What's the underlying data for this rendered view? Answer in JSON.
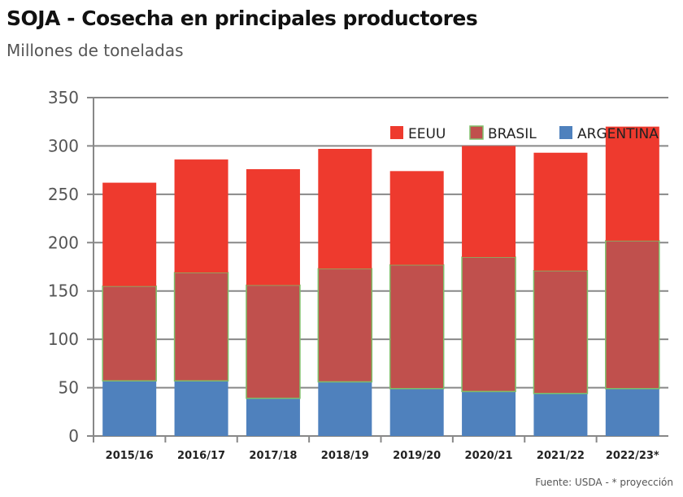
{
  "chart_data": {
    "type": "bar",
    "stacked": true,
    "title": "SOJA - Cosecha en principales productores",
    "subtitle": "Millones de toneladas",
    "source": "Fuente: USDA - * proyección",
    "categories": [
      "2015/16",
      "2016/17",
      "2017/18",
      "2018/19",
      "2019/20",
      "2020/21",
      "2021/22",
      "2022/23*"
    ],
    "series": [
      {
        "name": "ARGENTINA",
        "color": "#4f81bd",
        "values": [
          57,
          57,
          39,
          56,
          49,
          46,
          44,
          49
        ]
      },
      {
        "name": "BRASIL",
        "color": "#c0504d",
        "values": [
          98,
          112,
          117,
          117,
          128,
          139,
          127,
          153
        ]
      },
      {
        "name": "EEUU",
        "color": "#ee3a2e",
        "values": [
          107,
          117,
          120,
          124,
          97,
          115,
          122,
          118
        ]
      }
    ],
    "legend_order": [
      "EEUU",
      "BRASIL",
      "ARGENTINA"
    ],
    "ylim": [
      0,
      350
    ],
    "yticks": [
      0,
      50,
      100,
      150,
      200,
      250,
      300,
      350
    ],
    "grid": true,
    "legend_position": "top-right"
  }
}
